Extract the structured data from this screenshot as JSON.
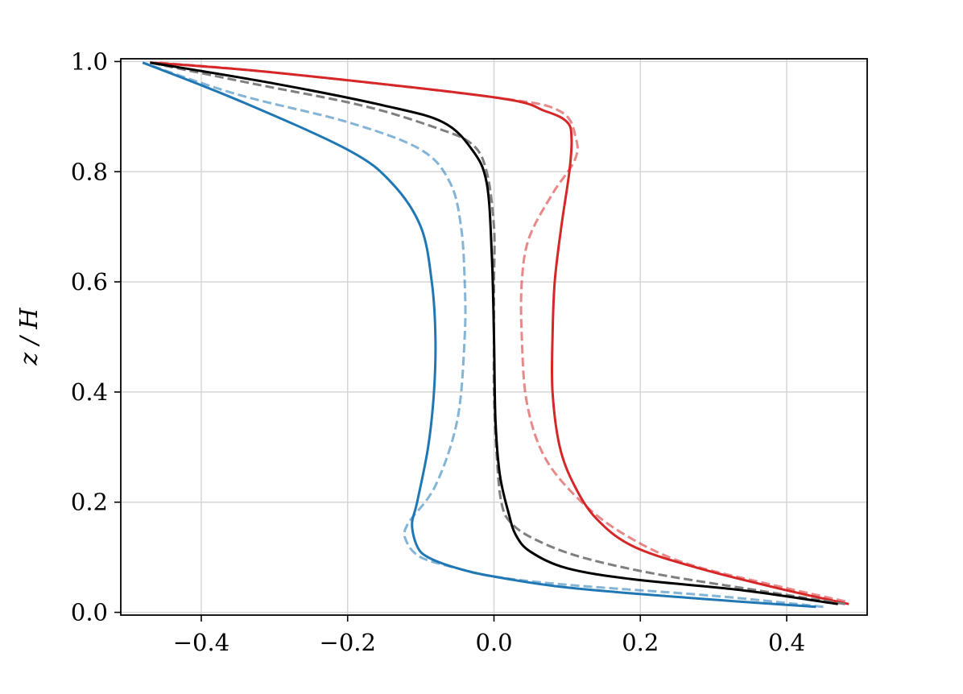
{
  "chart_data": {
    "type": "line",
    "title": "",
    "xlabel": "",
    "ylabel": "z / H",
    "xlim": [
      -0.51,
      0.51
    ],
    "ylim": [
      -0.005,
      1.005
    ],
    "grid": true,
    "xticks": [
      -0.4,
      -0.2,
      0.0,
      0.2,
      0.4
    ],
    "xtick_labels": [
      "−0.4",
      "−0.2",
      "0.0",
      "0.2",
      "0.4"
    ],
    "yticks": [
      0.0,
      0.2,
      0.4,
      0.6,
      0.8,
      1.0
    ],
    "ytick_labels": [
      "0.0",
      "0.2",
      "0.4",
      "0.6",
      "0.8",
      "1.0"
    ],
    "series": [
      {
        "color": "#d62728",
        "style": "dashed",
        "opacity": 0.55,
        "x": [
          0.48,
          0.38,
          0.26,
          0.18,
          0.12,
          0.07,
          0.045,
          0.038,
          0.038,
          0.048,
          0.08,
          0.11,
          0.112,
          0.09,
          0.0,
          -0.3,
          -0.46
        ],
        "y": [
          0.02,
          0.05,
          0.09,
          0.14,
          0.2,
          0.28,
          0.38,
          0.5,
          0.6,
          0.68,
          0.76,
          0.82,
          0.86,
          0.91,
          0.935,
          0.98,
          0.998
        ]
      },
      {
        "color": "#d62728",
        "style": "solid",
        "opacity": 1,
        "x": [
          0.485,
          0.4,
          0.28,
          0.19,
          0.14,
          0.11,
          0.09,
          0.08,
          0.08,
          0.083,
          0.092,
          0.103,
          0.106,
          0.1,
          0.07,
          0.0,
          -0.3,
          -0.47
        ],
        "y": [
          0.015,
          0.04,
          0.08,
          0.12,
          0.17,
          0.23,
          0.3,
          0.4,
          0.5,
          0.6,
          0.7,
          0.8,
          0.86,
          0.89,
          0.91,
          0.935,
          0.98,
          0.998
        ]
      },
      {
        "color": "#7f7f7f",
        "style": "dashed",
        "opacity": 1,
        "x": [
          0.48,
          0.36,
          0.22,
          0.12,
          0.06,
          0.025,
          0.01,
          0.003,
          0.0,
          0.0,
          0.0,
          0.0,
          -0.01,
          -0.03,
          -0.08,
          -0.18,
          -0.33,
          -0.47
        ],
        "y": [
          0.015,
          0.04,
          0.07,
          0.1,
          0.13,
          0.16,
          0.2,
          0.3,
          0.4,
          0.5,
          0.6,
          0.7,
          0.8,
          0.85,
          0.88,
          0.92,
          0.96,
          0.998
        ]
      },
      {
        "color": "#000000",
        "style": "solid",
        "opacity": 1,
        "x": [
          0.47,
          0.34,
          0.19,
          0.1,
          0.05,
          0.03,
          0.02,
          0.008,
          0.002,
          0.0,
          -0.003,
          -0.01,
          -0.03,
          -0.07,
          -0.15,
          -0.3,
          -0.47
        ],
        "y": [
          0.015,
          0.04,
          0.06,
          0.08,
          0.11,
          0.14,
          0.18,
          0.25,
          0.35,
          0.5,
          0.65,
          0.78,
          0.84,
          0.89,
          0.92,
          0.96,
          0.998
        ]
      },
      {
        "color": "#1f77b4",
        "style": "dashed",
        "opacity": 0.55,
        "x": [
          0.45,
          0.3,
          0.1,
          0.0,
          -0.05,
          -0.1,
          -0.12,
          -0.118,
          -0.08,
          -0.05,
          -0.04,
          -0.04,
          -0.045,
          -0.06,
          -0.1,
          -0.2,
          -0.35,
          -0.48
        ],
        "y": [
          0.01,
          0.03,
          0.05,
          0.065,
          0.08,
          0.1,
          0.13,
          0.16,
          0.23,
          0.35,
          0.5,
          0.6,
          0.7,
          0.78,
          0.84,
          0.89,
          0.94,
          0.998
        ]
      },
      {
        "color": "#1f77b4",
        "style": "solid",
        "opacity": 1,
        "x": [
          0.44,
          0.28,
          0.1,
          0.0,
          -0.05,
          -0.09,
          -0.105,
          -0.112,
          -0.105,
          -0.09,
          -0.082,
          -0.08,
          -0.085,
          -0.1,
          -0.14,
          -0.2,
          -0.35,
          -0.48
        ],
        "y": [
          0.01,
          0.025,
          0.045,
          0.065,
          0.08,
          0.1,
          0.12,
          0.16,
          0.2,
          0.3,
          0.4,
          0.5,
          0.6,
          0.7,
          0.78,
          0.84,
          0.93,
          0.998
        ]
      }
    ]
  }
}
